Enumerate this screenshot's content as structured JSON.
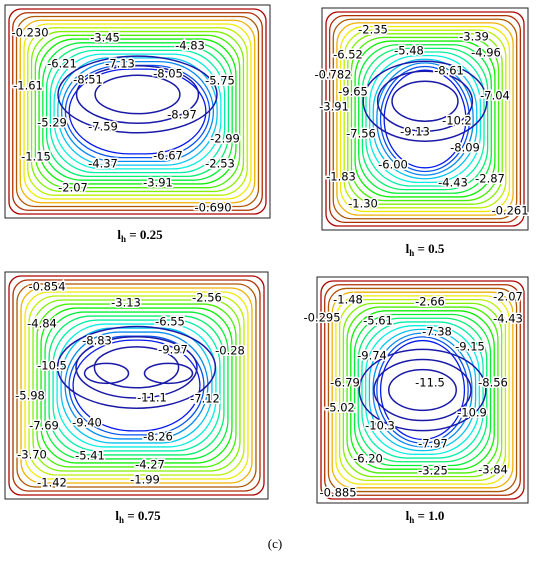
{
  "panels": [
    {
      "labels": [
        "-0.230",
        "-3.45",
        "-4.83",
        "-6.21",
        "-7.13",
        "-8.05",
        "-5.75",
        "-1.61",
        "-8.51",
        "-8.97",
        "-5.29",
        "-7.59",
        "-2.99",
        "-6.67",
        "-1.15",
        "-4.37",
        "-2.53",
        "-2.07",
        "-3.91",
        "-0.690"
      ],
      "caption": {
        "symbol": "l",
        "sub": "h",
        "rest": " = 0.25"
      }
    },
    {
      "labels": [
        "-2.35",
        "-3.39",
        "-6.52",
        "-5.48",
        "-4.96",
        "-0.782",
        "-8.61",
        "-9.65",
        "-7.04",
        "-3.91",
        "-10.2",
        "-7.56",
        "-9.13",
        "-8.09",
        "-6.00",
        "-1.83",
        "-4.43",
        "-2.87",
        "-1.30",
        "-0.261"
      ],
      "caption": {
        "symbol": "l",
        "sub": "h",
        "rest": " = 0.5"
      }
    },
    {
      "labels": [
        "-0.854",
        "-3.13",
        "-2.56",
        "-4.84",
        "-6.55",
        "-8.83",
        "-9.97",
        "-0.28",
        "-10.5",
        "-11.1",
        "-5.98",
        "-7.12",
        "-9.40",
        "-7.69",
        "-8.26",
        "-3.70",
        "-5.41",
        "-4.27",
        "-1.42",
        "-1.99"
      ],
      "caption": {
        "symbol": "l",
        "sub": "h",
        "rest": " = 0.75"
      }
    },
    {
      "labels": [
        "-1.48",
        "-2.66",
        "-2.07",
        "-0.295",
        "-5.61",
        "-4.43",
        "-7.38",
        "-9.15",
        "-9.74",
        "-11.5",
        "-6.79",
        "-8.56",
        "-10.9",
        "-5.02",
        "-10.3",
        "-7.97",
        "-6.20",
        "-3.25",
        "-3.84",
        "-0.885"
      ],
      "caption": {
        "symbol": "l",
        "sub": "h",
        "rest": " = 1.0"
      }
    }
  ],
  "figure_label": "(c)"
}
